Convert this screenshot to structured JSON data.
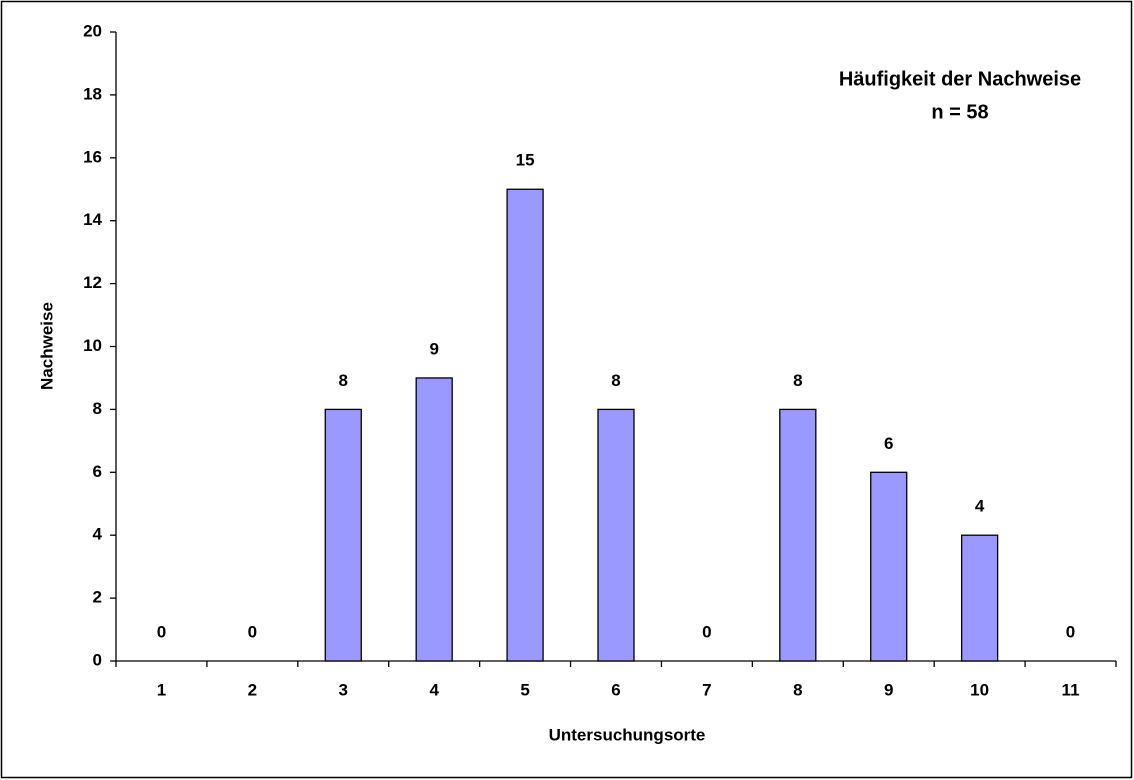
{
  "chart_data": {
    "type": "bar",
    "title": "Häufigkeit der Nachweise",
    "subtitle": "n = 58",
    "x_label": "Untersuchungsorte",
    "y_label": "Nachweise",
    "categories": [
      "1",
      "2",
      "3",
      "4",
      "5",
      "6",
      "7",
      "8",
      "9",
      "10",
      "11"
    ],
    "values": [
      0,
      0,
      8,
      9,
      15,
      8,
      0,
      8,
      6,
      4,
      0
    ],
    "color": "#9999ff",
    "ylim": [
      0,
      20
    ],
    "yticks": [
      0,
      2,
      4,
      6,
      8,
      10,
      12,
      14,
      16,
      18,
      20
    ],
    "grid": false
  }
}
